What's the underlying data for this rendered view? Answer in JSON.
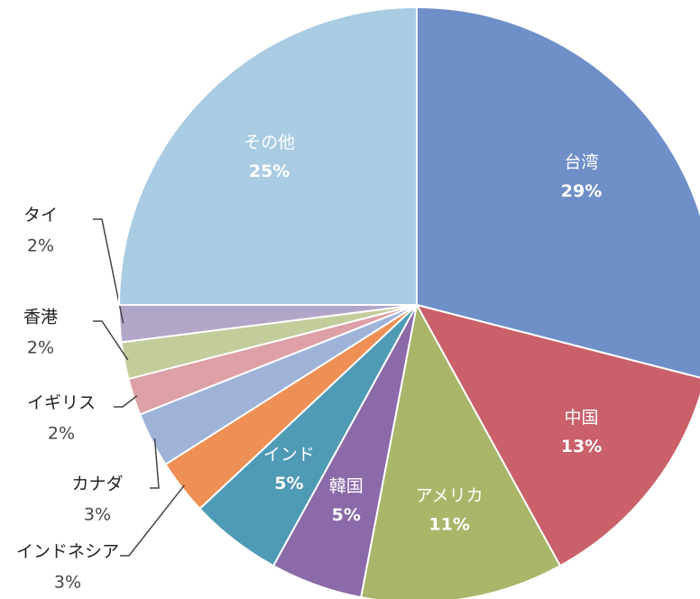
{
  "chart_data": {
    "type": "pie",
    "categories": [
      "台湾",
      "中国",
      "アメリカ",
      "韓国",
      "インド",
      "インドネシア",
      "カナダ",
      "イギリス",
      "香港",
      "タイ",
      "その他"
    ],
    "values": [
      29,
      13,
      11,
      5,
      5,
      3,
      3,
      2,
      2,
      2,
      25
    ],
    "value_labels": [
      "29%",
      "13%",
      "11%",
      "5%",
      "5%",
      "3%",
      "3%",
      "2%",
      "2%",
      "2%",
      "25%"
    ],
    "colors": [
      "#6f8fc8",
      "#c9606a",
      "#a9b66a",
      "#8a6aa8",
      "#4f9ab5",
      "#ee9055",
      "#9fb3d8",
      "#dca0a6",
      "#c3cc9b",
      "#b2a6c8",
      "#a9cce3"
    ]
  }
}
